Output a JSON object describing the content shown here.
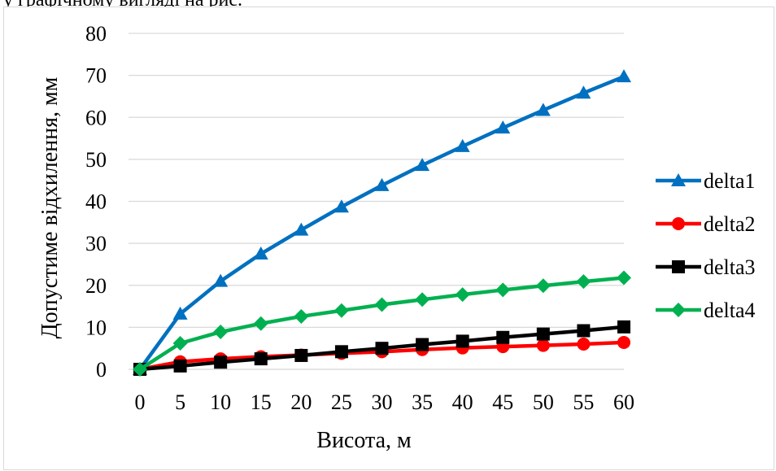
{
  "caption": "у графічному вигляді на рис.",
  "chart_data": {
    "type": "line",
    "xlabel": "Висота, м",
    "ylabel": "Допустиме відхилення, мм",
    "categories": [
      "0",
      "5",
      "10",
      "15",
      "20",
      "25",
      "30",
      "35",
      "40",
      "45",
      "50",
      "55",
      "60"
    ],
    "x": [
      0,
      5,
      10,
      15,
      20,
      25,
      30,
      35,
      40,
      45,
      50,
      55,
      60
    ],
    "ylim": [
      0,
      80
    ],
    "yticks": [
      0,
      10,
      20,
      30,
      40,
      50,
      60,
      70,
      80
    ],
    "grid": true,
    "legend_position": "right",
    "series": [
      {
        "name": "delta1",
        "color": "#0070c0",
        "marker": "triangle",
        "values": [
          0,
          13.2,
          21,
          27.5,
          33.2,
          38.7,
          43.8,
          48.6,
          53.1,
          57.5,
          61.7,
          65.8,
          69.7
        ]
      },
      {
        "name": "delta2",
        "color": "#ff0000",
        "marker": "circle",
        "values": [
          0,
          1.8,
          2.5,
          3,
          3.4,
          3.8,
          4.2,
          4.7,
          5.1,
          5.4,
          5.7,
          6,
          6.4
        ]
      },
      {
        "name": "delta3",
        "color": "#000000",
        "marker": "square",
        "values": [
          0,
          0.8,
          1.7,
          2.5,
          3.3,
          4.2,
          5,
          5.9,
          6.7,
          7.6,
          8.4,
          9.2,
          10.1
        ]
      },
      {
        "name": "delta4",
        "color": "#00b050",
        "marker": "diamond",
        "values": [
          0,
          6.2,
          8.9,
          10.9,
          12.6,
          14,
          15.4,
          16.6,
          17.8,
          18.9,
          19.9,
          20.9,
          21.8
        ]
      }
    ]
  }
}
